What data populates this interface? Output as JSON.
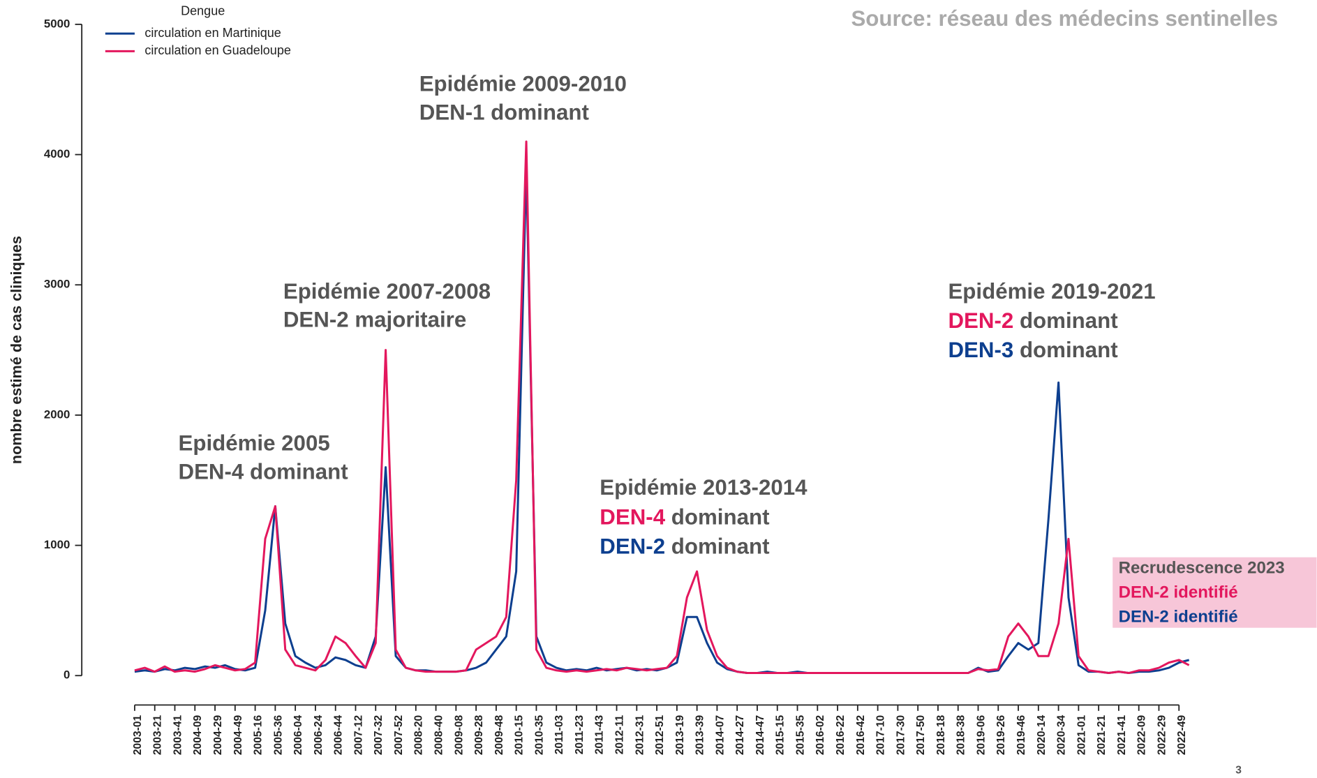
{
  "chart_data": {
    "type": "line",
    "source": "Source: réseau des médecins sentinelles",
    "y_label": "nombre estimé de cas cliniques",
    "legend_title": "Dengue",
    "page_number": "3",
    "ylim": [
      0,
      5000
    ],
    "yticks": [
      0,
      1000,
      2000,
      3000,
      4000,
      5000
    ],
    "categories": [
      "2003-01",
      null,
      "2003-21",
      null,
      "2003-41",
      null,
      "2004-09",
      null,
      "2004-29",
      null,
      "2004-49",
      null,
      "2005-16",
      null,
      "2005-36",
      null,
      "2006-04",
      null,
      "2006-24",
      null,
      "2006-44",
      null,
      "2007-12",
      null,
      "2007-32",
      null,
      "2007-52",
      null,
      "2008-20",
      null,
      "2008-40",
      null,
      "2009-08",
      null,
      "2009-28",
      null,
      "2009-48",
      null,
      "2010-15",
      null,
      "2010-35",
      null,
      "2011-03",
      null,
      "2011-23",
      null,
      "2011-43",
      null,
      "2012-11",
      null,
      "2012-31",
      null,
      "2012-51",
      null,
      "2013-19",
      null,
      "2013-39",
      null,
      "2014-07",
      null,
      "2014-27",
      null,
      "2014-47",
      null,
      "2015-15",
      null,
      "2015-35",
      null,
      "2016-02",
      null,
      "2016-22",
      null,
      "2016-42",
      null,
      "2017-10",
      null,
      "2017-30",
      null,
      "2017-50",
      null,
      "2018-18",
      null,
      "2018-38",
      null,
      "2019-06",
      null,
      "2019-26",
      null,
      "2019-46",
      null,
      "2020-14",
      null,
      "2020-34",
      null,
      "2021-01",
      null,
      "2021-21",
      null,
      "2021-41",
      null,
      "2022-09",
      null,
      "2022-29",
      null,
      "2022-49",
      null
    ],
    "series": [
      {
        "name": "circulation en Martinique",
        "color": "#0d3f8f",
        "values": [
          30,
          40,
          30,
          50,
          40,
          60,
          50,
          70,
          60,
          80,
          50,
          40,
          60,
          500,
          1300,
          400,
          150,
          100,
          60,
          80,
          140,
          120,
          80,
          60,
          300,
          1600,
          150,
          60,
          40,
          40,
          30,
          30,
          30,
          40,
          60,
          100,
          200,
          300,
          800,
          3900,
          300,
          100,
          60,
          40,
          50,
          40,
          60,
          40,
          50,
          60,
          40,
          50,
          40,
          60,
          100,
          450,
          450,
          250,
          100,
          50,
          30,
          20,
          20,
          30,
          20,
          20,
          30,
          20,
          20,
          20,
          20,
          20,
          20,
          20,
          20,
          20,
          20,
          20,
          20,
          20,
          20,
          20,
          20,
          20,
          60,
          30,
          40,
          150,
          250,
          200,
          250,
          1200,
          2250,
          600,
          80,
          30,
          30,
          20,
          30,
          20,
          30,
          30,
          40,
          60,
          100,
          120
        ]
      },
      {
        "name": "circulation en Guadeloupe",
        "color": "#e3175d",
        "values": [
          40,
          60,
          30,
          70,
          30,
          40,
          30,
          50,
          80,
          60,
          40,
          50,
          100,
          1050,
          1300,
          200,
          80,
          60,
          40,
          120,
          300,
          250,
          150,
          60,
          250,
          2500,
          200,
          60,
          40,
          30,
          30,
          30,
          30,
          40,
          200,
          250,
          300,
          450,
          1500,
          4100,
          200,
          60,
          40,
          30,
          40,
          30,
          40,
          50,
          40,
          60,
          50,
          40,
          50,
          60,
          150,
          600,
          800,
          350,
          150,
          60,
          30,
          20,
          20,
          20,
          20,
          20,
          20,
          20,
          20,
          20,
          20,
          20,
          20,
          20,
          20,
          20,
          20,
          20,
          20,
          20,
          20,
          20,
          20,
          20,
          50,
          40,
          50,
          300,
          400,
          300,
          150,
          150,
          400,
          1050,
          150,
          40,
          30,
          20,
          30,
          20,
          40,
          40,
          60,
          100,
          120,
          80
        ]
      }
    ],
    "annotations": [
      {
        "lines": [
          [
            {
              "text": "Epidémie 2005",
              "color": "#555555"
            }
          ],
          [
            {
              "text": "DEN-4 dominant",
              "color": "#555555"
            }
          ]
        ]
      },
      {
        "lines": [
          [
            {
              "text": "Epidémie 2007-2008",
              "color": "#555555"
            }
          ],
          [
            {
              "text": "DEN-2 majoritaire",
              "color": "#555555"
            }
          ]
        ]
      },
      {
        "lines": [
          [
            {
              "text": "Epidémie 2009-2010",
              "color": "#555555"
            }
          ],
          [
            {
              "text": "DEN-1 dominant",
              "color": "#555555"
            }
          ]
        ]
      },
      {
        "lines": [
          [
            {
              "text": "Epidémie 2013-2014",
              "color": "#555555"
            }
          ],
          [
            {
              "text": "DEN-4",
              "color": "#e3175d"
            },
            {
              "text": " dominant",
              "color": "#555555"
            }
          ],
          [
            {
              "text": "DEN-2",
              "color": "#0d3f8f"
            },
            {
              "text": " dominant",
              "color": "#555555"
            }
          ]
        ]
      },
      {
        "lines": [
          [
            {
              "text": "Epidémie 2019-2021",
              "color": "#555555"
            }
          ],
          [
            {
              "text": "DEN-2",
              "color": "#e3175d"
            },
            {
              "text": " dominant",
              "color": "#555555"
            }
          ],
          [
            {
              "text": "DEN-3",
              "color": "#0d3f8f"
            },
            {
              "text": " dominant",
              "color": "#555555"
            }
          ]
        ]
      },
      {
        "box_color": "#f7c6d8",
        "lines": [
          [
            {
              "text": "Recrudescence 2023",
              "color": "#555555"
            }
          ],
          [
            {
              "text": "DEN-2 identifié",
              "color": "#e3175d"
            }
          ],
          [
            {
              "text": "DEN-2 identifié",
              "color": "#0d3f8f"
            }
          ]
        ]
      }
    ]
  }
}
